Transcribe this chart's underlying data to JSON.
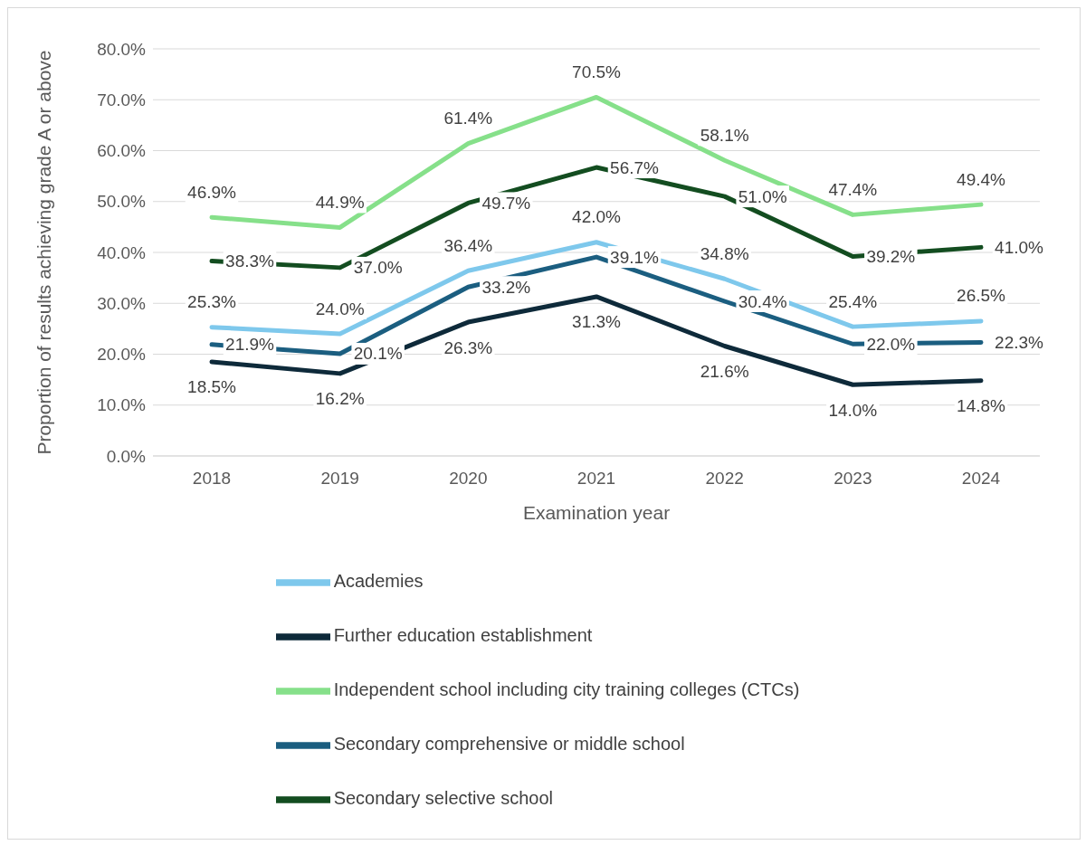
{
  "chart_data": {
    "type": "line",
    "xlabel": "Examination year",
    "ylabel": "Proportion of results achieving grade A or above",
    "categories": [
      "2018",
      "2019",
      "2020",
      "2021",
      "2022",
      "2023",
      "2024"
    ],
    "series": [
      {
        "name": "Academies",
        "color": "#7ec8ec",
        "values": [
          25.3,
          24.0,
          36.4,
          42.0,
          34.8,
          25.4,
          26.5
        ],
        "value_labels": [
          "25.3%",
          "24.0%",
          "36.4%",
          "42.0%",
          "34.8%",
          "25.4%",
          "26.5%"
        ]
      },
      {
        "name": "Further education establishment",
        "color": "#0e2a3a",
        "values": [
          18.5,
          16.2,
          26.3,
          31.3,
          21.6,
          14.0,
          14.8
        ],
        "value_labels": [
          "18.5%",
          "16.2%",
          "26.3%",
          "31.3%",
          "21.6%",
          "14.0%",
          "14.8%"
        ]
      },
      {
        "name": "Independent school including city training colleges (CTCs)",
        "color": "#86e08a",
        "values": [
          46.9,
          44.9,
          61.4,
          70.5,
          58.1,
          47.4,
          49.4
        ],
        "value_labels": [
          "46.9%",
          "44.9%",
          "61.4%",
          "70.5%",
          "58.1%",
          "47.4%",
          "49.4%"
        ]
      },
      {
        "name": "Secondary comprehensive or middle school",
        "color": "#1b5e80",
        "values": [
          21.9,
          20.1,
          33.2,
          39.1,
          30.4,
          22.0,
          22.3
        ],
        "value_labels": [
          "21.9%",
          "20.1%",
          "33.2%",
          "39.1%",
          "30.4%",
          "22.0%",
          "22.3%"
        ]
      },
      {
        "name": "Secondary selective school",
        "color": "#134d20",
        "values": [
          38.3,
          37.0,
          49.7,
          56.7,
          51.0,
          39.2,
          41.0
        ],
        "value_labels": [
          "38.3%",
          "37.0%",
          "49.7%",
          "56.7%",
          "51.0%",
          "39.2%",
          "41.0%"
        ]
      }
    ],
    "ylim": [
      0,
      80
    ],
    "yticks": [
      {
        "value": 0,
        "label": "0.0%"
      },
      {
        "value": 10,
        "label": "10.0%"
      },
      {
        "value": 20,
        "label": "20.0%"
      },
      {
        "value": 30,
        "label": "30.0%"
      },
      {
        "value": 40,
        "label": "40.0%"
      },
      {
        "value": 50,
        "label": "50.0%"
      },
      {
        "value": 60,
        "label": "60.0%"
      },
      {
        "value": 70,
        "label": "70.0%"
      },
      {
        "value": 80,
        "label": "80.0%"
      }
    ],
    "grid": "y",
    "legend": "bottom",
    "marker": "none",
    "line_style": "solid"
  }
}
